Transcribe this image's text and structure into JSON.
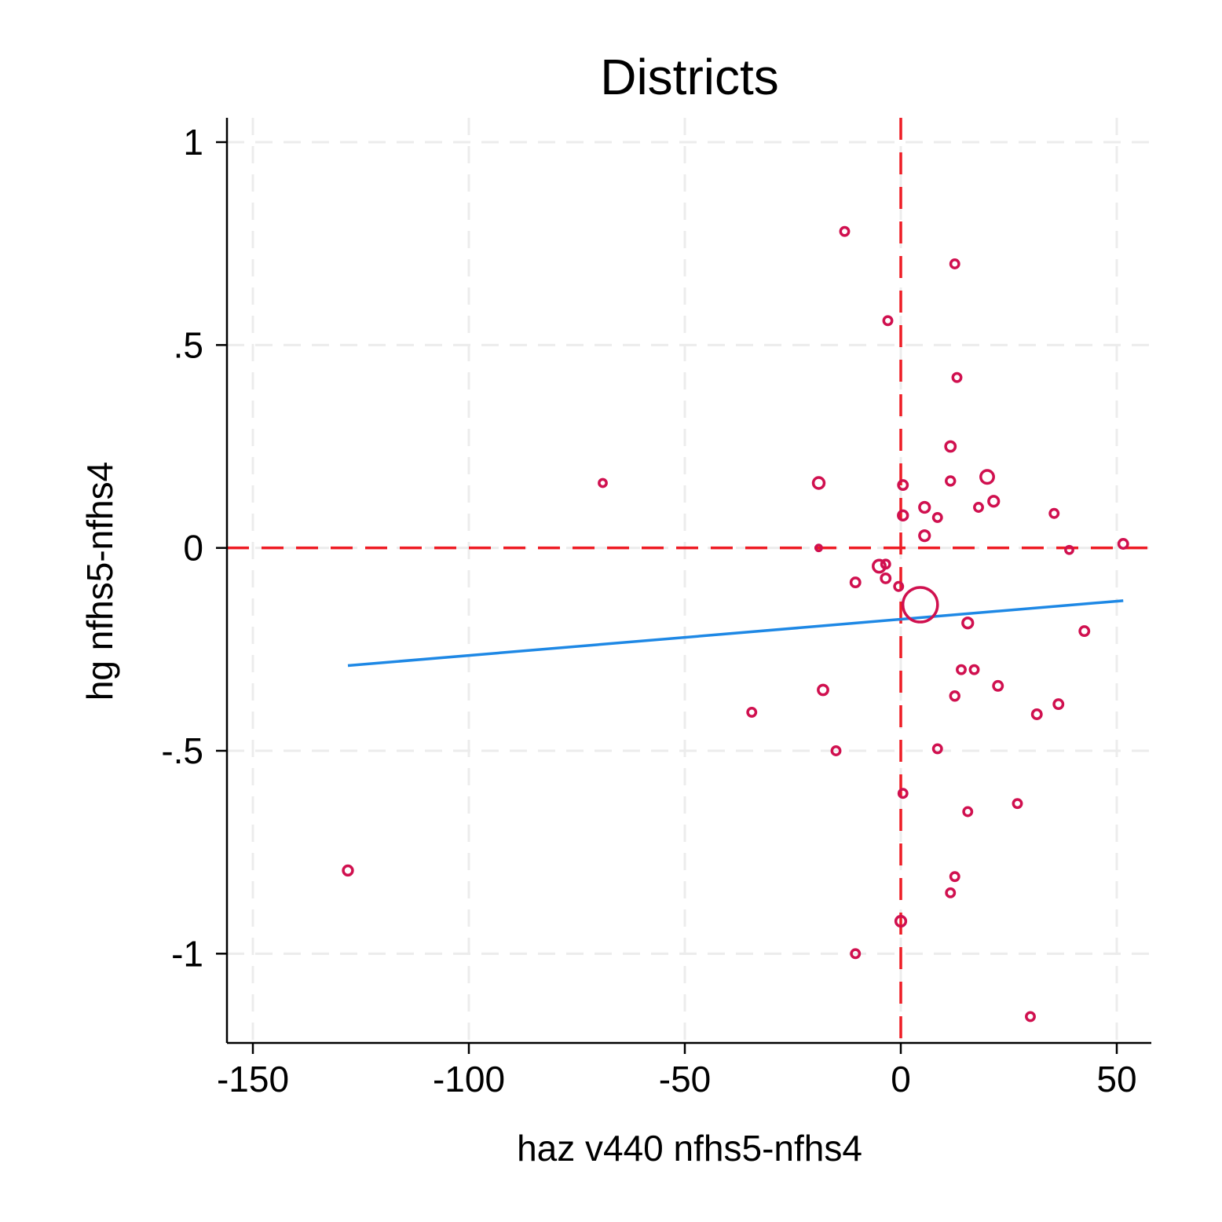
{
  "chart_data": {
    "type": "scatter",
    "title": "Districts",
    "xlabel": "haz v440 nfhs5-nfhs4",
    "ylabel": "hg nfhs5-nfhs4",
    "xlim": [
      -156,
      58
    ],
    "ylim": [
      -1.22,
      1.06
    ],
    "xticks": [
      -150,
      -100,
      -50,
      0,
      50
    ],
    "xtick_labels": [
      "-150",
      "-100",
      "-50",
      "0",
      "50"
    ],
    "yticks": [
      1,
      0.5,
      0,
      -0.5,
      -1
    ],
    "ytick_labels": [
      "1",
      ".5",
      "0",
      "-.5",
      "-1"
    ],
    "grid": true,
    "legend": "none",
    "colors": {
      "points": "#d0104f",
      "fit_line": "#1e88e5",
      "reference_lines": "#ee1c24",
      "grid": "#ececec"
    },
    "reference_lines": {
      "x": 0,
      "y": 0
    },
    "fit_line": {
      "x": [
        -128,
        51.5
      ],
      "y": [
        -0.29,
        -0.13
      ]
    },
    "points": [
      {
        "x": -13,
        "y": 0.78,
        "w": 1
      },
      {
        "x": 12.5,
        "y": 0.7,
        "w": 1
      },
      {
        "x": -3,
        "y": 0.56,
        "w": 1
      },
      {
        "x": 13,
        "y": 0.42,
        "w": 1
      },
      {
        "x": 11.5,
        "y": 0.25,
        "w": 1.4
      },
      {
        "x": 20,
        "y": 0.175,
        "w": 2.5
      },
      {
        "x": -69,
        "y": 0.16,
        "w": 0.8
      },
      {
        "x": -19,
        "y": 0.16,
        "w": 1.8
      },
      {
        "x": 0.5,
        "y": 0.155,
        "w": 1.2
      },
      {
        "x": 11.5,
        "y": 0.165,
        "w": 1.1
      },
      {
        "x": 21.5,
        "y": 0.115,
        "w": 1.5
      },
      {
        "x": 5.5,
        "y": 0.1,
        "w": 1.5
      },
      {
        "x": 18,
        "y": 0.1,
        "w": 1
      },
      {
        "x": 35.5,
        "y": 0.085,
        "w": 1
      },
      {
        "x": 0.5,
        "y": 0.08,
        "w": 1.3
      },
      {
        "x": 8.5,
        "y": 0.075,
        "w": 1
      },
      {
        "x": 5.5,
        "y": 0.03,
        "w": 1.5
      },
      {
        "x": 51.5,
        "y": 0.01,
        "w": 1.2
      },
      {
        "x": -19,
        "y": 0.0,
        "w": 0.5
      },
      {
        "x": 39,
        "y": -0.005,
        "w": 0.8
      },
      {
        "x": -5,
        "y": -0.045,
        "w": 2.2
      },
      {
        "x": -3.5,
        "y": -0.04,
        "w": 1
      },
      {
        "x": -3.5,
        "y": -0.075,
        "w": 1.2
      },
      {
        "x": -10.5,
        "y": -0.085,
        "w": 1.2
      },
      {
        "x": -0.5,
        "y": -0.095,
        "w": 1
      },
      {
        "x": 4.5,
        "y": -0.14,
        "w": 18
      },
      {
        "x": 15.5,
        "y": -0.185,
        "w": 1.5
      },
      {
        "x": 42.5,
        "y": -0.205,
        "w": 1.2
      },
      {
        "x": 14,
        "y": -0.3,
        "w": 1
      },
      {
        "x": 17,
        "y": -0.3,
        "w": 1
      },
      {
        "x": -18,
        "y": -0.35,
        "w": 1.4
      },
      {
        "x": 22.5,
        "y": -0.34,
        "w": 1.2
      },
      {
        "x": 12.5,
        "y": -0.365,
        "w": 1.1
      },
      {
        "x": 36.5,
        "y": -0.385,
        "w": 1.2
      },
      {
        "x": -34.5,
        "y": -0.405,
        "w": 1
      },
      {
        "x": 31.5,
        "y": -0.41,
        "w": 1.2
      },
      {
        "x": 8.5,
        "y": -0.495,
        "w": 1
      },
      {
        "x": -15,
        "y": -0.5,
        "w": 1
      },
      {
        "x": 0.5,
        "y": -0.605,
        "w": 1
      },
      {
        "x": 27,
        "y": -0.63,
        "w": 1
      },
      {
        "x": 15.5,
        "y": -0.65,
        "w": 1
      },
      {
        "x": -128,
        "y": -0.795,
        "w": 1.3
      },
      {
        "x": 12.5,
        "y": -0.81,
        "w": 1
      },
      {
        "x": 11.5,
        "y": -0.85,
        "w": 1
      },
      {
        "x": 0,
        "y": -0.92,
        "w": 1.5
      },
      {
        "x": -10.5,
        "y": -1.0,
        "w": 1
      },
      {
        "x": 30,
        "y": -1.155,
        "w": 1
      }
    ]
  }
}
